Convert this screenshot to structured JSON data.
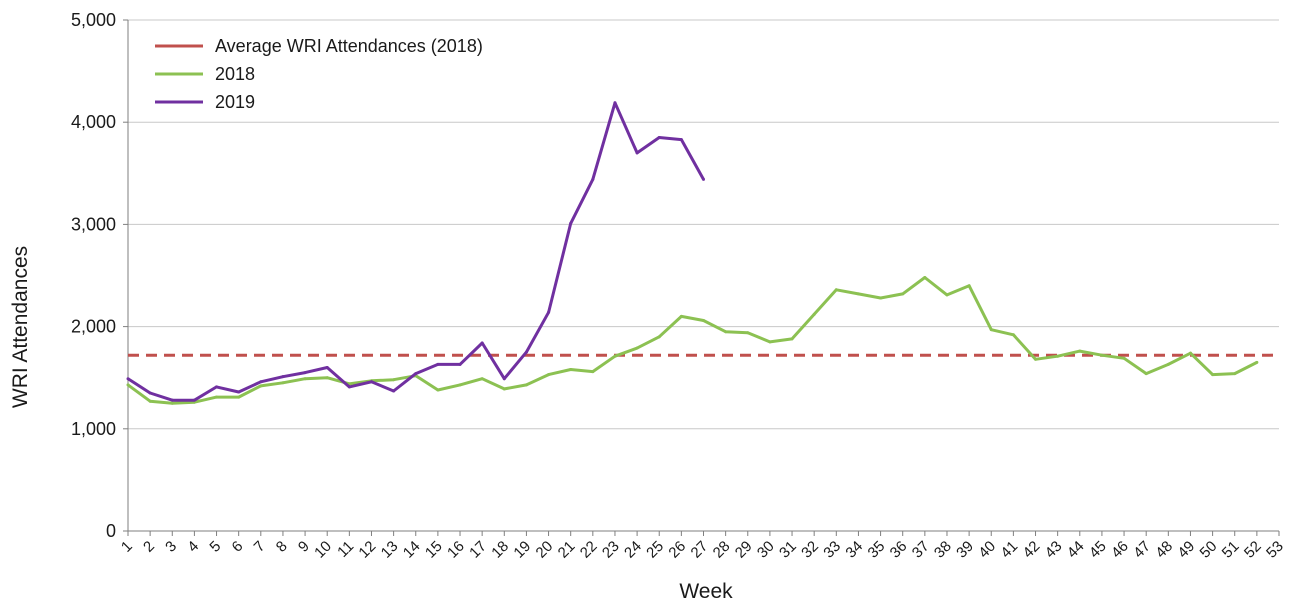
{
  "chart_data": {
    "type": "line",
    "xlabel": "Week",
    "ylabel": "WRI Attendances",
    "ylim": [
      0,
      5000
    ],
    "yticks": [
      0,
      1000,
      2000,
      3000,
      4000,
      5000
    ],
    "ytick_labels": [
      "0",
      "1,000",
      "2,000",
      "3,000",
      "4,000",
      "5,000"
    ],
    "x": [
      1,
      2,
      3,
      4,
      5,
      6,
      7,
      8,
      9,
      10,
      11,
      12,
      13,
      14,
      15,
      16,
      17,
      18,
      19,
      20,
      21,
      22,
      23,
      24,
      25,
      26,
      27,
      28,
      29,
      30,
      31,
      32,
      33,
      34,
      35,
      36,
      37,
      38,
      39,
      40,
      41,
      42,
      43,
      44,
      45,
      46,
      47,
      48,
      49,
      50,
      51,
      52,
      53
    ],
    "xtick_labels": [
      "1",
      "2",
      "3",
      "4",
      "5",
      "6",
      "7",
      "8",
      "9",
      "10",
      "11",
      "12",
      "13",
      "14",
      "15",
      "16",
      "17",
      "18",
      "19",
      "20",
      "21",
      "22",
      "23",
      "24",
      "25",
      "26",
      "27",
      "28",
      "29",
      "30",
      "31",
      "32",
      "33",
      "34",
      "35",
      "36",
      "37",
      "38",
      "39",
      "40",
      "41",
      "42",
      "43",
      "44",
      "45",
      "46",
      "47",
      "48",
      "49",
      "50",
      "51",
      "52",
      "53"
    ],
    "grid": true,
    "legend_position": "top-left",
    "series": [
      {
        "name": "Average WRI Attendances (2018)",
        "color": "#c0504d",
        "style": "dashed",
        "x": [
          1,
          53
        ],
        "values": [
          1720,
          1720
        ]
      },
      {
        "name": "2018",
        "color": "#8cc152",
        "style": "solid",
        "x": [
          1,
          2,
          3,
          4,
          5,
          6,
          7,
          8,
          9,
          10,
          11,
          12,
          13,
          14,
          15,
          16,
          17,
          18,
          19,
          20,
          21,
          22,
          23,
          24,
          25,
          26,
          27,
          28,
          29,
          30,
          31,
          32,
          33,
          34,
          35,
          36,
          37,
          38,
          39,
          40,
          41,
          42,
          43,
          44,
          45,
          46,
          47,
          48,
          49,
          50,
          51,
          52
        ],
        "values": [
          1430,
          1270,
          1250,
          1260,
          1310,
          1310,
          1420,
          1450,
          1490,
          1500,
          1440,
          1470,
          1480,
          1520,
          1380,
          1430,
          1490,
          1390,
          1430,
          1530,
          1580,
          1560,
          1710,
          1790,
          1900,
          2100,
          2060,
          1950,
          1940,
          1850,
          1880,
          2120,
          2360,
          2320,
          2280,
          2320,
          2480,
          2310,
          2400,
          1970,
          1920,
          1680,
          1710,
          1760,
          1720,
          1690,
          1540,
          1630,
          1740,
          1530,
          1540,
          1650
        ]
      },
      {
        "name": "2019",
        "color": "#7030a0",
        "style": "solid",
        "x": [
          1,
          2,
          3,
          4,
          5,
          6,
          7,
          8,
          9,
          10,
          11,
          12,
          13,
          14,
          15,
          16,
          17,
          18,
          19,
          20,
          21,
          22,
          23,
          24,
          25,
          26,
          27
        ],
        "values": [
          1490,
          1350,
          1280,
          1280,
          1410,
          1360,
          1460,
          1510,
          1550,
          1600,
          1410,
          1460,
          1370,
          1540,
          1630,
          1630,
          1840,
          1490,
          1750,
          2140,
          3010,
          3440,
          4190,
          3700,
          3850,
          3830,
          3440
        ]
      }
    ]
  }
}
